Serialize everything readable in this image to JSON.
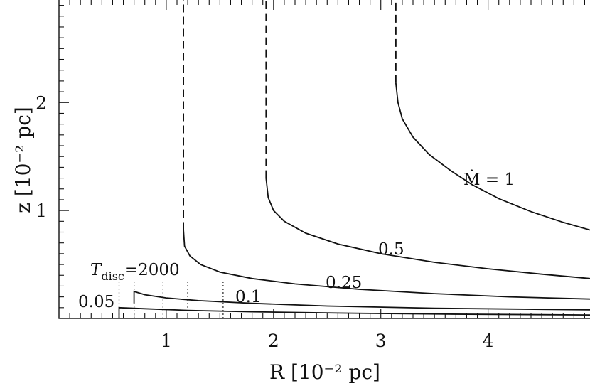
{
  "chart_data": {
    "type": "line",
    "xlabel": "R [10⁻² pc]",
    "ylabel": "z [10⁻² pc]",
    "xlim": [
      0,
      4.95
    ],
    "ylim": [
      0,
      2.95
    ],
    "x_ticks": [
      1,
      2,
      3,
      4
    ],
    "x_tick_labels": [
      "1",
      "2",
      "3",
      "4"
    ],
    "y_ticks": [
      1,
      2
    ],
    "y_tick_labels": [
      "1",
      "2"
    ],
    "series": [
      {
        "name": "Ṁ = 1",
        "label_text": "Ṁ = 1",
        "solid": [
          [
            3.14,
            2.18
          ],
          [
            3.16,
            2.0
          ],
          [
            3.2,
            1.85
          ],
          [
            3.3,
            1.68
          ],
          [
            3.45,
            1.52
          ],
          [
            3.65,
            1.37
          ],
          [
            3.85,
            1.24
          ],
          [
            4.1,
            1.11
          ],
          [
            4.4,
            0.99
          ],
          [
            4.7,
            0.89
          ],
          [
            4.95,
            0.82
          ]
        ],
        "dashed": [
          [
            3.14,
            2.18
          ],
          [
            3.14,
            2.95
          ]
        ]
      },
      {
        "name": "0.5",
        "label_text": "0.5",
        "solid": [
          [
            1.93,
            1.3
          ],
          [
            1.95,
            1.12
          ],
          [
            2.0,
            1.0
          ],
          [
            2.1,
            0.9
          ],
          [
            2.3,
            0.79
          ],
          [
            2.6,
            0.69
          ],
          [
            3.0,
            0.6
          ],
          [
            3.5,
            0.52
          ],
          [
            4.0,
            0.46
          ],
          [
            4.5,
            0.41
          ],
          [
            4.95,
            0.37
          ]
        ],
        "dashed": [
          [
            1.93,
            1.3
          ],
          [
            1.93,
            2.95
          ]
        ]
      },
      {
        "name": "0.25",
        "label_text": "0.25",
        "solid": [
          [
            1.16,
            0.82
          ],
          [
            1.17,
            0.67
          ],
          [
            1.22,
            0.58
          ],
          [
            1.32,
            0.5
          ],
          [
            1.5,
            0.43
          ],
          [
            1.8,
            0.37
          ],
          [
            2.2,
            0.32
          ],
          [
            2.8,
            0.27
          ],
          [
            3.5,
            0.23
          ],
          [
            4.2,
            0.2
          ],
          [
            4.95,
            0.18
          ]
        ],
        "dashed": [
          [
            1.16,
            0.82
          ],
          [
            1.16,
            2.95
          ]
        ]
      },
      {
        "name": "0.1",
        "label_text": "0.1",
        "solid": [
          [
            0.7,
            0.14
          ],
          [
            0.7,
            0.25
          ],
          [
            0.8,
            0.22
          ],
          [
            1.0,
            0.19
          ],
          [
            1.3,
            0.165
          ],
          [
            1.8,
            0.14
          ],
          [
            2.5,
            0.115
          ],
          [
            3.5,
            0.095
          ],
          [
            4.95,
            0.08
          ]
        ]
      },
      {
        "name": "0.05",
        "label_text": "0.05",
        "solid": [
          [
            0.56,
            0.0
          ],
          [
            0.56,
            0.1
          ],
          [
            0.8,
            0.09
          ],
          [
            1.2,
            0.075
          ],
          [
            1.8,
            0.062
          ],
          [
            2.6,
            0.05
          ],
          [
            3.6,
            0.04
          ],
          [
            4.95,
            0.032
          ]
        ]
      }
    ],
    "annotations": [
      {
        "text": "T_disc = 2000",
        "base": "T",
        "subscript": "disc",
        "value": "=2000"
      }
    ],
    "dotted_verticals": [
      {
        "x": 0.56,
        "top": 0.35
      },
      {
        "x": 0.7,
        "top": 0.35
      },
      {
        "x": 0.97,
        "top": 0.35
      },
      {
        "x": 1.2,
        "top": 0.35
      },
      {
        "x": 1.53,
        "top": 0.35
      }
    ],
    "grid": false
  }
}
